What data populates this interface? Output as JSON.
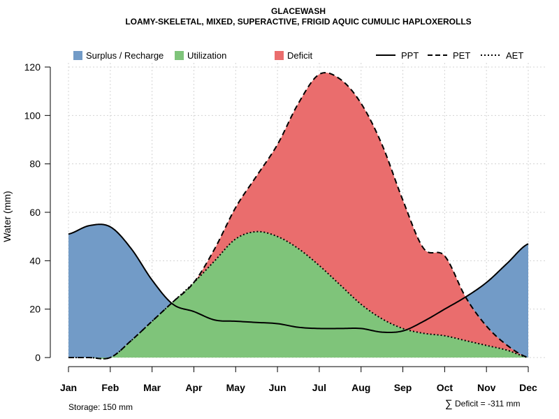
{
  "chart_data": {
    "type": "area",
    "title": "GLACEWASH",
    "subtitle": "LOAMY-SKELETAL, MIXED, SUPERACTIVE, FRIGID AQUIC CUMULIC HAPLOXEROLLS",
    "ylabel": "Water (mm)",
    "xlabel": "",
    "ylim": [
      0,
      120
    ],
    "yticks": [
      0,
      20,
      40,
      60,
      80,
      100,
      120
    ],
    "grid": true,
    "categories": [
      "Jan",
      "Feb",
      "Mar",
      "Apr",
      "May",
      "Jun",
      "Jul",
      "Aug",
      "Sep",
      "Oct",
      "Nov",
      "Dec"
    ],
    "x": [
      1,
      1.5,
      2,
      2.5,
      3,
      3.5,
      4,
      4.5,
      5,
      5.5,
      6,
      6.5,
      7,
      7.5,
      8,
      8.5,
      9,
      9.5,
      10,
      10.5,
      11,
      11.5,
      12
    ],
    "series": [
      {
        "name": "PPT",
        "style": "solid",
        "values": [
          51,
          54.5,
          54,
          45,
          32,
          22,
          19,
          15.5,
          15,
          14.5,
          14,
          12.5,
          12,
          12,
          12,
          10.5,
          11,
          15,
          20,
          25,
          31,
          39,
          47
        ]
      },
      {
        "name": "PET",
        "style": "dashed",
        "values": [
          0,
          0,
          0,
          7,
          15,
          23,
          31,
          45,
          62,
          75,
          88,
          105,
          117,
          115,
          105,
          88,
          65,
          45,
          42,
          25,
          13,
          5,
          0
        ]
      },
      {
        "name": "AET",
        "style": "dotted",
        "values": [
          0,
          0,
          0,
          7,
          15,
          23,
          31,
          40,
          49,
          52,
          50,
          45,
          38,
          30,
          22,
          16,
          12,
          10,
          9,
          7,
          5,
          3,
          0
        ]
      }
    ],
    "legend": {
      "position": "top",
      "fills": [
        {
          "label": "Surplus / Recharge",
          "color": "#729BC7"
        },
        {
          "label": "Utilization",
          "color": "#7FC47A"
        },
        {
          "label": "Deficit",
          "color": "#EA6D6D"
        }
      ],
      "lines": [
        {
          "label": "PPT",
          "style": "solid"
        },
        {
          "label": "PET",
          "style": "dashed"
        },
        {
          "label": "AET",
          "style": "dotted"
        }
      ]
    },
    "annotations": {
      "storage": "Storage: 150 mm",
      "deficit_symbol": "∑",
      "deficit": "Deficit = -311 mm"
    }
  }
}
